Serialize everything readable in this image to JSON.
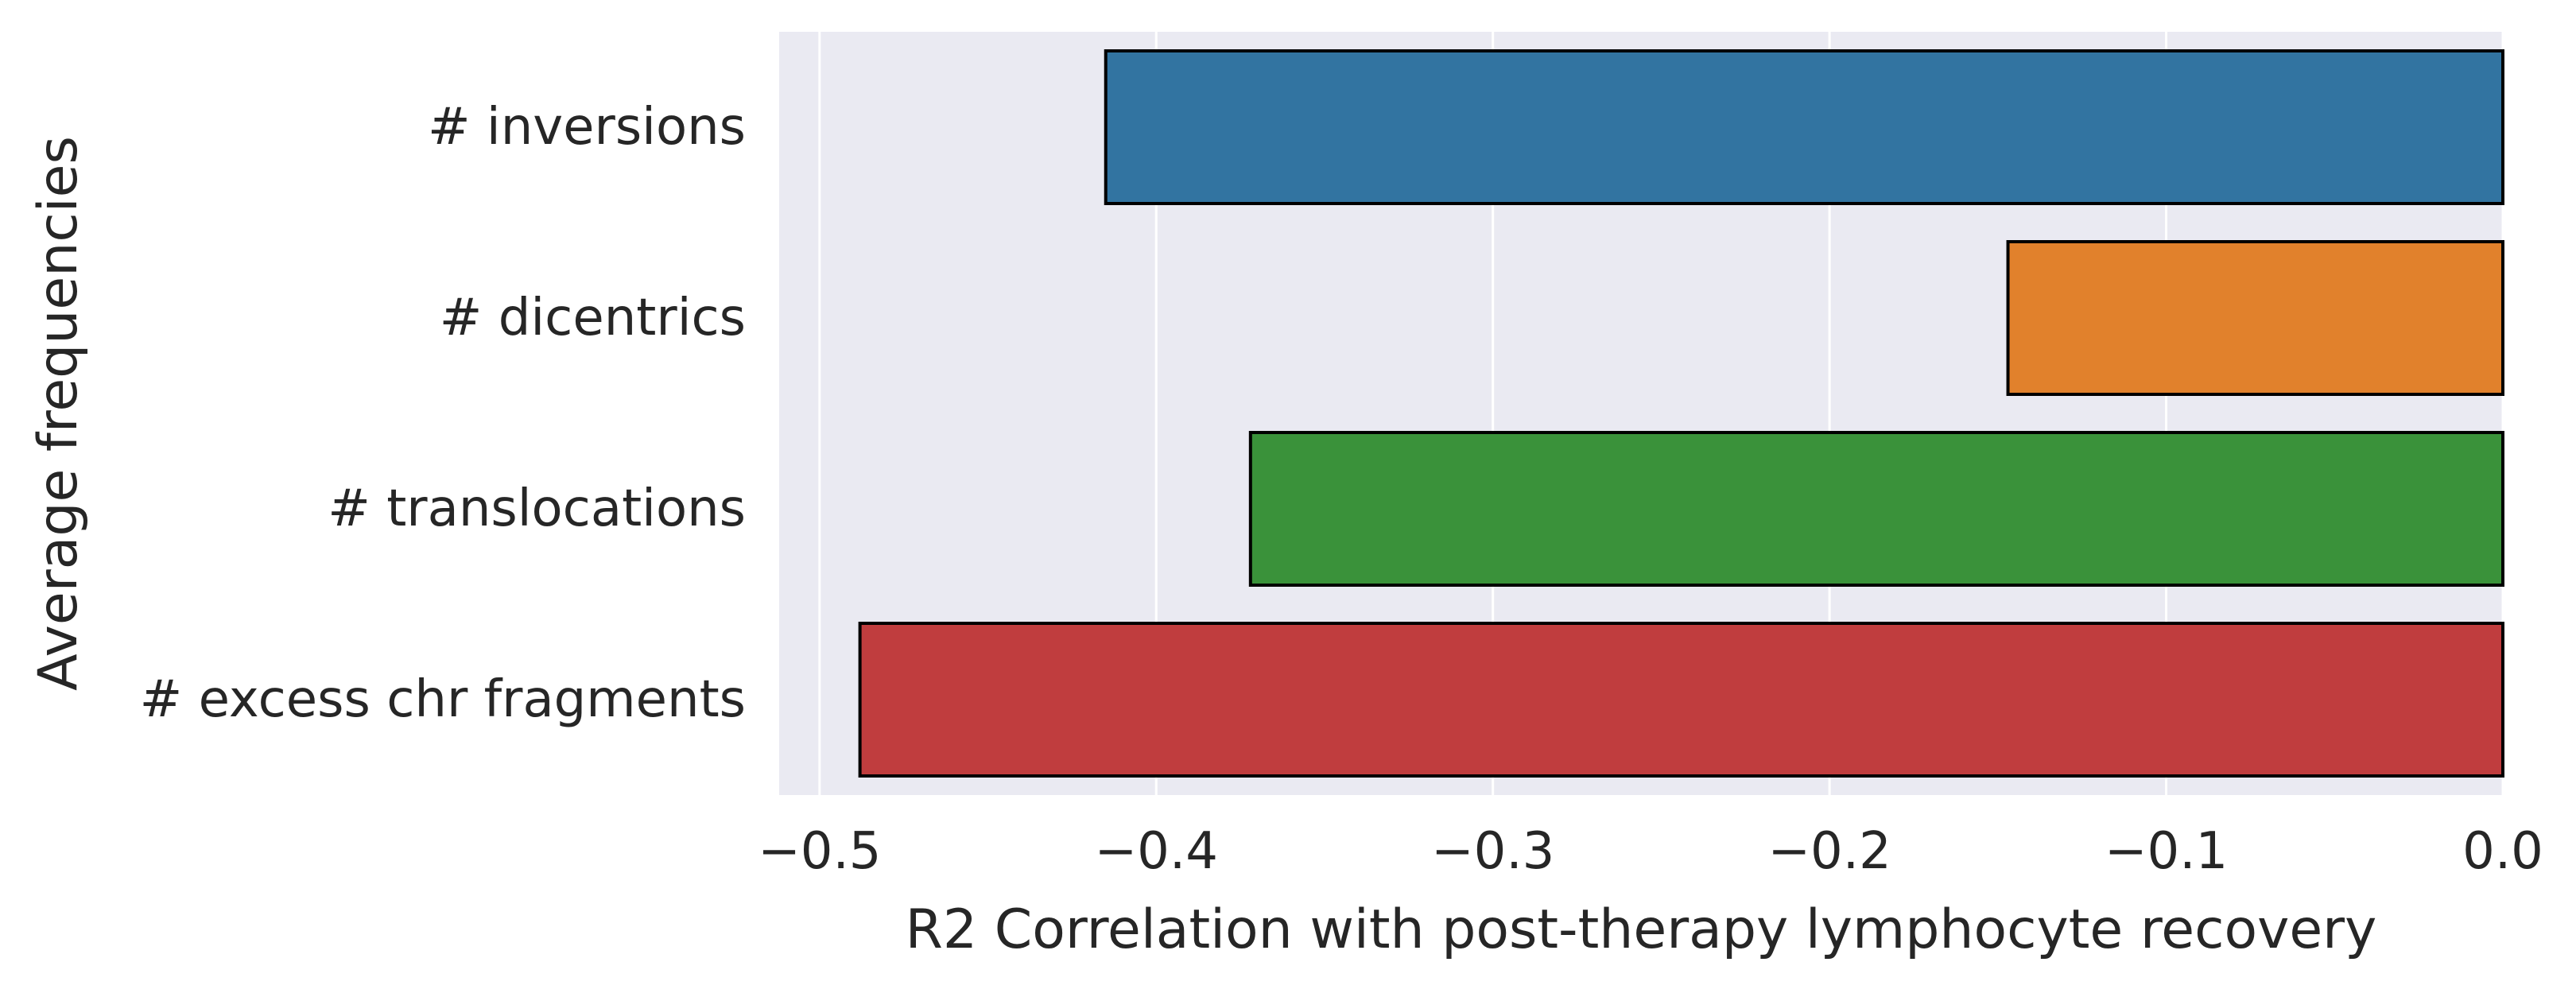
{
  "chart_data": {
    "type": "bar",
    "orientation": "horizontal",
    "categories": [
      "# inversions",
      "# dicentrics",
      "# translocations",
      "# excess chr fragments"
    ],
    "values": [
      -0.415,
      -0.147,
      -0.372,
      -0.488
    ],
    "colors": [
      "#3274a1",
      "#e1812c",
      "#3a923a",
      "#c03d3e"
    ],
    "xlabel": "R2 Correlation with post-therapy lymphocyte recovery",
    "ylabel": "Average frequencies",
    "xlim": [
      -0.512,
      0.0
    ],
    "xticks": [
      -0.5,
      -0.4,
      -0.3,
      -0.2,
      -0.1,
      0.0
    ],
    "xtick_labels": [
      "−0.5",
      "−0.4",
      "−0.3",
      "−0.2",
      "−0.1",
      "0.0"
    ],
    "grid": true,
    "background_color": "#eaeaf2",
    "edge_color": "#000000"
  }
}
